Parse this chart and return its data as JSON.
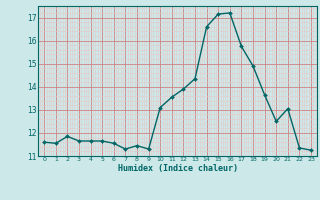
{
  "x": [
    0,
    1,
    2,
    3,
    4,
    5,
    6,
    7,
    8,
    9,
    10,
    11,
    12,
    13,
    14,
    15,
    16,
    17,
    18,
    19,
    20,
    21,
    22,
    23
  ],
  "y": [
    11.6,
    11.55,
    11.85,
    11.65,
    11.65,
    11.65,
    11.55,
    11.3,
    11.45,
    11.3,
    13.1,
    13.55,
    13.9,
    14.35,
    16.6,
    17.15,
    17.2,
    15.75,
    14.9,
    13.65,
    12.5,
    13.05,
    11.35,
    11.25
  ],
  "xlabel": "Humidex (Indice chaleur)",
  "bg_color": "#cce8e8",
  "grid_major_color": "#d08080",
  "grid_minor_color": "#e8c8c8",
  "line_color": "#006666",
  "marker_color": "#006666",
  "ylim": [
    11,
    17.5
  ],
  "xlim": [
    -0.5,
    23.5
  ],
  "yticks": [
    11,
    12,
    13,
    14,
    15,
    16,
    17
  ],
  "xticks": [
    0,
    1,
    2,
    3,
    4,
    5,
    6,
    7,
    8,
    9,
    10,
    11,
    12,
    13,
    14,
    15,
    16,
    17,
    18,
    19,
    20,
    21,
    22,
    23
  ]
}
